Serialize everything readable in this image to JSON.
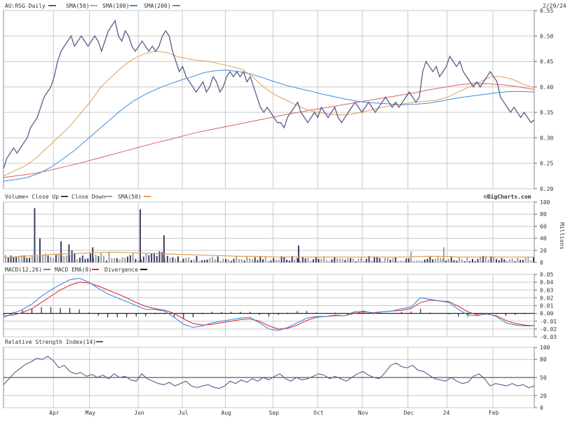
{
  "header": {
    "symbol": "AU:RSG Daily",
    "end_date": "2/29/24",
    "watermark": "©BigCharts.com"
  },
  "colors": {
    "price": "#5a5a8a",
    "sma50": "#e0a050",
    "sma100": "#3a8ee0",
    "sma200": "#e06060",
    "volume_up": "#3c3c66",
    "volume_down": "#a0a0a0",
    "grid": "#c8c8c8",
    "macd": "#3a8ee0",
    "macd_ema": "#e03030",
    "divergence": "#000000",
    "rsi": "#5a5a8a"
  },
  "x_axis": {
    "month_labels": [
      "Apr",
      "May",
      "Jun",
      "Jul",
      "Aug",
      "Sep",
      "Oct",
      "Nov",
      "Dec",
      "24",
      "Feb"
    ]
  },
  "chart_data": [
    {
      "type": "line",
      "panel": "price",
      "legend": [
        "AU:RSG Daily",
        "SMA(50)",
        "SMA(100)",
        "SMA(200)"
      ],
      "ylim": [
        0.2,
        0.55
      ],
      "yticks": [
        "0.55",
        "0.50",
        "0.45",
        "0.40",
        "0.35",
        "0.30",
        "0.25",
        "0.20"
      ],
      "grid": true,
      "series": [
        {
          "name": "AU:RSG Daily",
          "key": "price",
          "values": [
            0.24,
            0.26,
            0.27,
            0.28,
            0.27,
            0.28,
            0.29,
            0.3,
            0.32,
            0.33,
            0.34,
            0.36,
            0.38,
            0.39,
            0.4,
            0.42,
            0.45,
            0.47,
            0.48,
            0.49,
            0.5,
            0.48,
            0.49,
            0.5,
            0.49,
            0.48,
            0.49,
            0.5,
            0.49,
            0.47,
            0.49,
            0.51,
            0.52,
            0.53,
            0.5,
            0.49,
            0.51,
            0.5,
            0.48,
            0.47,
            0.48,
            0.49,
            0.48,
            0.47,
            0.48,
            0.47,
            0.48,
            0.5,
            0.51,
            0.5,
            0.47,
            0.45,
            0.43,
            0.44,
            0.42,
            0.41,
            0.4,
            0.39,
            0.4,
            0.41,
            0.39,
            0.4,
            0.42,
            0.41,
            0.39,
            0.4,
            0.42,
            0.43,
            0.42,
            0.43,
            0.42,
            0.43,
            0.41,
            0.42,
            0.4,
            0.38,
            0.36,
            0.35,
            0.36,
            0.35,
            0.34,
            0.33,
            0.33,
            0.32,
            0.34,
            0.35,
            0.36,
            0.37,
            0.35,
            0.34,
            0.33,
            0.34,
            0.35,
            0.34,
            0.36,
            0.35,
            0.34,
            0.35,
            0.36,
            0.34,
            0.33,
            0.34,
            0.35,
            0.36,
            0.37,
            0.36,
            0.35,
            0.36,
            0.37,
            0.36,
            0.35,
            0.36,
            0.37,
            0.38,
            0.37,
            0.36,
            0.37,
            0.36,
            0.37,
            0.38,
            0.39,
            0.38,
            0.37,
            0.38,
            0.43,
            0.45,
            0.44,
            0.43,
            0.44,
            0.42,
            0.43,
            0.44,
            0.46,
            0.45,
            0.44,
            0.45,
            0.43,
            0.42,
            0.41,
            0.4,
            0.41,
            0.4,
            0.41,
            0.42,
            0.43,
            0.42,
            0.41,
            0.38,
            0.37,
            0.36,
            0.35,
            0.36,
            0.35,
            0.34,
            0.35,
            0.34,
            0.33,
            0.335
          ]
        },
        {
          "name": "SMA(50)",
          "key": "sma50",
          "values": [
            0.225,
            0.235,
            0.245,
            0.26,
            0.28,
            0.3,
            0.32,
            0.345,
            0.37,
            0.4,
            0.42,
            0.44,
            0.455,
            0.465,
            0.47,
            0.468,
            0.46,
            0.455,
            0.452,
            0.45,
            0.445,
            0.44,
            0.435,
            0.42,
            0.4,
            0.385,
            0.375,
            0.365,
            0.355,
            0.35,
            0.347,
            0.345,
            0.346,
            0.35,
            0.355,
            0.36,
            0.364,
            0.367,
            0.37,
            0.372,
            0.374,
            0.38,
            0.39,
            0.4,
            0.41,
            0.42,
            0.42,
            0.415,
            0.405,
            0.398
          ]
        },
        {
          "name": "SMA(100)",
          "key": "sma100",
          "values": [
            0.215,
            0.218,
            0.222,
            0.23,
            0.242,
            0.258,
            0.275,
            0.295,
            0.315,
            0.335,
            0.355,
            0.372,
            0.385,
            0.396,
            0.405,
            0.413,
            0.42,
            0.428,
            0.432,
            0.433,
            0.43,
            0.425,
            0.418,
            0.41,
            0.403,
            0.397,
            0.392,
            0.386,
            0.381,
            0.376,
            0.372,
            0.369,
            0.368,
            0.366,
            0.365,
            0.366,
            0.368,
            0.372,
            0.376,
            0.38,
            0.383,
            0.386,
            0.389,
            0.391,
            0.391,
            0.39
          ]
        },
        {
          "name": "SMA(200)",
          "key": "sma200",
          "values": [
            0.222,
            0.226,
            0.23,
            0.236,
            0.243,
            0.25,
            0.258,
            0.266,
            0.274,
            0.282,
            0.29,
            0.297,
            0.305,
            0.312,
            0.318,
            0.324,
            0.33,
            0.336,
            0.342,
            0.348,
            0.353,
            0.358,
            0.363,
            0.368,
            0.373,
            0.378,
            0.383,
            0.388,
            0.394,
            0.399,
            0.404,
            0.407,
            0.406,
            0.404,
            0.4,
            0.395
          ]
        }
      ]
    },
    {
      "type": "bar",
      "panel": "volume",
      "legend": [
        "Volume+ Close Up",
        "Close Down",
        "SMA(50)"
      ],
      "ylabel": "Millions",
      "ylim": [
        0,
        100
      ],
      "yticks": [
        "100",
        "80",
        "60",
        "40",
        "20",
        "0"
      ],
      "spikes": [
        {
          "at": 0.055,
          "value": 90
        },
        {
          "at": 0.065,
          "value": 40
        },
        {
          "at": 0.105,
          "value": 35
        },
        {
          "at": 0.12,
          "value": 30
        },
        {
          "at": 0.165,
          "value": 25
        },
        {
          "at": 0.255,
          "value": 88
        },
        {
          "at": 0.3,
          "value": 45
        },
        {
          "at": 0.555,
          "value": 28
        },
        {
          "at": 0.768,
          "value": 18
        },
        {
          "at": 0.83,
          "value": 25
        }
      ],
      "sma50": [
        8,
        10,
        12,
        14,
        15,
        16,
        17,
        16,
        15,
        14,
        13,
        12,
        11,
        10,
        10,
        9,
        9,
        9,
        9,
        9,
        9,
        9,
        9,
        10,
        10,
        9,
        9,
        9,
        9,
        9
      ]
    },
    {
      "type": "line",
      "panel": "macd",
      "legend": [
        "MACD(12,26)",
        "MACD EMA(9)",
        "Divergence"
      ],
      "ylim": [
        -0.03,
        0.05
      ],
      "yticks": [
        "0.05",
        "0.04",
        "0.03",
        "0.02",
        "0.01",
        "0.00",
        "-0.01",
        "-0.02",
        "-0.03"
      ],
      "series": [
        {
          "name": "MACD(12,26)",
          "key": "macd",
          "values": [
            -0.005,
            0.0,
            0.005,
            0.012,
            0.022,
            0.03,
            0.037,
            0.043,
            0.045,
            0.04,
            0.032,
            0.025,
            0.02,
            0.015,
            0.01,
            0.005,
            0.005,
            0.003,
            -0.005,
            -0.014,
            -0.018,
            -0.016,
            -0.012,
            -0.01,
            -0.008,
            -0.006,
            -0.005,
            -0.012,
            -0.02,
            -0.022,
            -0.018,
            -0.012,
            -0.006,
            -0.004,
            -0.004,
            -0.002,
            -0.003,
            0.002,
            0.003,
            0.0,
            0.002,
            0.003,
            0.006,
            0.008,
            0.02,
            0.018,
            0.016,
            0.014,
            0.005,
            -0.002,
            -0.003,
            0.0,
            -0.004,
            -0.012,
            -0.015,
            -0.016,
            -0.016
          ]
        },
        {
          "name": "MACD EMA(9)",
          "key": "macd_ema",
          "values": [
            -0.003,
            -0.002,
            0.001,
            0.006,
            0.014,
            0.022,
            0.03,
            0.036,
            0.04,
            0.039,
            0.035,
            0.03,
            0.025,
            0.02,
            0.014,
            0.009,
            0.006,
            0.004,
            0.0,
            -0.007,
            -0.013,
            -0.015,
            -0.014,
            -0.012,
            -0.01,
            -0.008,
            -0.007,
            -0.01,
            -0.016,
            -0.02,
            -0.019,
            -0.015,
            -0.009,
            -0.005,
            -0.004,
            -0.003,
            -0.003,
            0.0,
            0.002,
            0.001,
            0.002,
            0.003,
            0.004,
            0.006,
            0.014,
            0.017,
            0.016,
            0.015,
            0.009,
            0.002,
            -0.002,
            -0.001,
            -0.003,
            -0.009,
            -0.013,
            -0.015,
            -0.016
          ]
        }
      ]
    },
    {
      "type": "line",
      "panel": "rsi",
      "legend": [
        "Relative Strength Index(14)"
      ],
      "ylim": [
        0,
        100
      ],
      "yticks": [
        "100",
        "80",
        "50",
        "20",
        "0"
      ],
      "series": [
        {
          "name": "Relative Strength Index(14)",
          "key": "rsi",
          "values": [
            38,
            48,
            58,
            65,
            72,
            76,
            82,
            80,
            85,
            78,
            66,
            70,
            60,
            56,
            58,
            52,
            55,
            50,
            54,
            48,
            56,
            50,
            52,
            46,
            44,
            56,
            48,
            44,
            40,
            38,
            42,
            36,
            40,
            44,
            36,
            33,
            36,
            38,
            34,
            32,
            36,
            44,
            40,
            46,
            42,
            48,
            44,
            50,
            46,
            52,
            56,
            48,
            44,
            50,
            46,
            48,
            52,
            56,
            54,
            48,
            52,
            48,
            44,
            50,
            56,
            60,
            54,
            50,
            48,
            58,
            70,
            74,
            68,
            66,
            70,
            62,
            60,
            54,
            48,
            46,
            44,
            50,
            44,
            40,
            42,
            52,
            56,
            48,
            36,
            40,
            38,
            36,
            40,
            36,
            38,
            33,
            36
          ]
        }
      ]
    }
  ]
}
